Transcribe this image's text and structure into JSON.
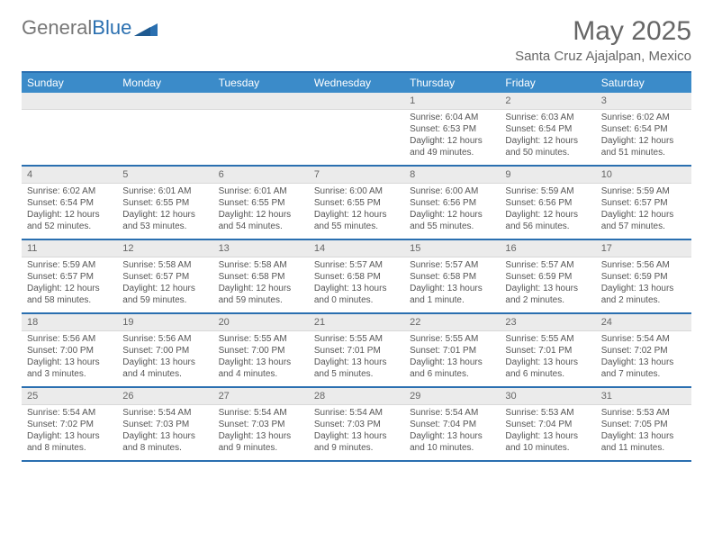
{
  "brand": {
    "part1": "General",
    "part2": "Blue"
  },
  "title": "May 2025",
  "location": "Santa Cruz Ajajalpan, Mexico",
  "colors": {
    "header_bg": "#3b8bc9",
    "rule": "#2a6fb0",
    "gray_band": "#ebebeb",
    "text": "#555555",
    "title_text": "#666666"
  },
  "day_names": [
    "Sunday",
    "Monday",
    "Tuesday",
    "Wednesday",
    "Thursday",
    "Friday",
    "Saturday"
  ],
  "weeks": [
    [
      null,
      null,
      null,
      null,
      {
        "n": "1",
        "sr": "6:04 AM",
        "ss": "6:53 PM",
        "dl": "12 hours and 49 minutes."
      },
      {
        "n": "2",
        "sr": "6:03 AM",
        "ss": "6:54 PM",
        "dl": "12 hours and 50 minutes."
      },
      {
        "n": "3",
        "sr": "6:02 AM",
        "ss": "6:54 PM",
        "dl": "12 hours and 51 minutes."
      }
    ],
    [
      {
        "n": "4",
        "sr": "6:02 AM",
        "ss": "6:54 PM",
        "dl": "12 hours and 52 minutes."
      },
      {
        "n": "5",
        "sr": "6:01 AM",
        "ss": "6:55 PM",
        "dl": "12 hours and 53 minutes."
      },
      {
        "n": "6",
        "sr": "6:01 AM",
        "ss": "6:55 PM",
        "dl": "12 hours and 54 minutes."
      },
      {
        "n": "7",
        "sr": "6:00 AM",
        "ss": "6:55 PM",
        "dl": "12 hours and 55 minutes."
      },
      {
        "n": "8",
        "sr": "6:00 AM",
        "ss": "6:56 PM",
        "dl": "12 hours and 55 minutes."
      },
      {
        "n": "9",
        "sr": "5:59 AM",
        "ss": "6:56 PM",
        "dl": "12 hours and 56 minutes."
      },
      {
        "n": "10",
        "sr": "5:59 AM",
        "ss": "6:57 PM",
        "dl": "12 hours and 57 minutes."
      }
    ],
    [
      {
        "n": "11",
        "sr": "5:59 AM",
        "ss": "6:57 PM",
        "dl": "12 hours and 58 minutes."
      },
      {
        "n": "12",
        "sr": "5:58 AM",
        "ss": "6:57 PM",
        "dl": "12 hours and 59 minutes."
      },
      {
        "n": "13",
        "sr": "5:58 AM",
        "ss": "6:58 PM",
        "dl": "12 hours and 59 minutes."
      },
      {
        "n": "14",
        "sr": "5:57 AM",
        "ss": "6:58 PM",
        "dl": "13 hours and 0 minutes."
      },
      {
        "n": "15",
        "sr": "5:57 AM",
        "ss": "6:58 PM",
        "dl": "13 hours and 1 minute."
      },
      {
        "n": "16",
        "sr": "5:57 AM",
        "ss": "6:59 PM",
        "dl": "13 hours and 2 minutes."
      },
      {
        "n": "17",
        "sr": "5:56 AM",
        "ss": "6:59 PM",
        "dl": "13 hours and 2 minutes."
      }
    ],
    [
      {
        "n": "18",
        "sr": "5:56 AM",
        "ss": "7:00 PM",
        "dl": "13 hours and 3 minutes."
      },
      {
        "n": "19",
        "sr": "5:56 AM",
        "ss": "7:00 PM",
        "dl": "13 hours and 4 minutes."
      },
      {
        "n": "20",
        "sr": "5:55 AM",
        "ss": "7:00 PM",
        "dl": "13 hours and 4 minutes."
      },
      {
        "n": "21",
        "sr": "5:55 AM",
        "ss": "7:01 PM",
        "dl": "13 hours and 5 minutes."
      },
      {
        "n": "22",
        "sr": "5:55 AM",
        "ss": "7:01 PM",
        "dl": "13 hours and 6 minutes."
      },
      {
        "n": "23",
        "sr": "5:55 AM",
        "ss": "7:01 PM",
        "dl": "13 hours and 6 minutes."
      },
      {
        "n": "24",
        "sr": "5:54 AM",
        "ss": "7:02 PM",
        "dl": "13 hours and 7 minutes."
      }
    ],
    [
      {
        "n": "25",
        "sr": "5:54 AM",
        "ss": "7:02 PM",
        "dl": "13 hours and 8 minutes."
      },
      {
        "n": "26",
        "sr": "5:54 AM",
        "ss": "7:03 PM",
        "dl": "13 hours and 8 minutes."
      },
      {
        "n": "27",
        "sr": "5:54 AM",
        "ss": "7:03 PM",
        "dl": "13 hours and 9 minutes."
      },
      {
        "n": "28",
        "sr": "5:54 AM",
        "ss": "7:03 PM",
        "dl": "13 hours and 9 minutes."
      },
      {
        "n": "29",
        "sr": "5:54 AM",
        "ss": "7:04 PM",
        "dl": "13 hours and 10 minutes."
      },
      {
        "n": "30",
        "sr": "5:53 AM",
        "ss": "7:04 PM",
        "dl": "13 hours and 10 minutes."
      },
      {
        "n": "31",
        "sr": "5:53 AM",
        "ss": "7:05 PM",
        "dl": "13 hours and 11 minutes."
      }
    ]
  ],
  "labels": {
    "sunrise": "Sunrise:",
    "sunset": "Sunset:",
    "daylight": "Daylight:"
  }
}
